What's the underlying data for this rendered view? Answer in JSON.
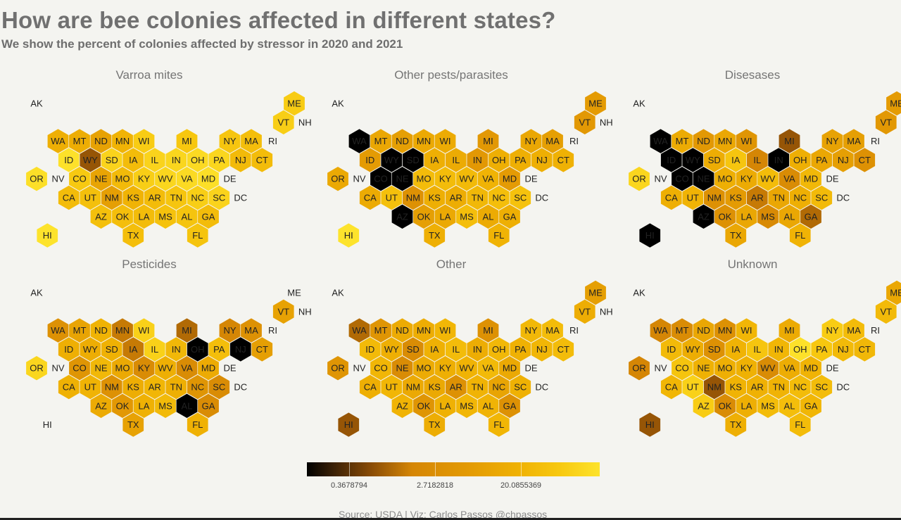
{
  "title": "How are bee colonies affected in different states?",
  "subtitle": "We show the percent of colonies affected by stressor in 2020 and 2021",
  "caption": "Source: USDA |  Viz: Carlos Passos @chpassos",
  "colors": {
    "background": "#f4f4f0",
    "scale_low": "#000000",
    "scale_mid": "#e39a04",
    "scale_high": "#fde32c",
    "missing": "#ffffff"
  },
  "legend": {
    "ticks": [
      {
        "label": "0.3678794",
        "value": 0.3678794
      },
      {
        "label": "2.7182818",
        "value": 2.7182818
      },
      {
        "label": "20.0855369",
        "value": 20.0855369
      }
    ]
  },
  "chart_data": {
    "type": "heatmap",
    "note_scale": "log color scale, dark = low percent, yellow = high percent",
    "grid": {
      "AK": [
        0,
        0
      ],
      "ME": [
        12,
        0
      ],
      "VT": [
        11,
        1
      ],
      "NH": [
        12,
        1
      ],
      "WA": [
        1,
        2
      ],
      "MT": [
        2,
        2
      ],
      "ND": [
        3,
        2
      ],
      "MN": [
        4,
        2
      ],
      "WI": [
        5,
        2
      ],
      "MI": [
        7,
        2
      ],
      "NY": [
        9,
        2
      ],
      "MA": [
        10,
        2
      ],
      "RI": [
        11,
        2
      ],
      "ID": [
        1,
        3
      ],
      "WY": [
        2,
        3
      ],
      "SD": [
        3,
        3
      ],
      "IA": [
        4,
        3
      ],
      "IL": [
        5,
        3
      ],
      "IN": [
        6,
        3
      ],
      "OH": [
        7,
        3
      ],
      "PA": [
        8,
        3
      ],
      "NJ": [
        9,
        3
      ],
      "CT": [
        10,
        3
      ],
      "OR": [
        0,
        4
      ],
      "NV": [
        1,
        4
      ],
      "CO": [
        2,
        4
      ],
      "NE": [
        3,
        4
      ],
      "MO": [
        4,
        4
      ],
      "KY": [
        5,
        4
      ],
      "WV": [
        6,
        4
      ],
      "VA": [
        7,
        4
      ],
      "MD": [
        8,
        4
      ],
      "DE": [
        9,
        4
      ],
      "CA": [
        1,
        5
      ],
      "UT": [
        2,
        5
      ],
      "NM": [
        3,
        5
      ],
      "KS": [
        4,
        5
      ],
      "AR": [
        5,
        5
      ],
      "TN": [
        6,
        5
      ],
      "NC": [
        7,
        5
      ],
      "SC": [
        8,
        5
      ],
      "DC": [
        9,
        5
      ],
      "AZ": [
        3,
        6
      ],
      "OK": [
        4,
        6
      ],
      "LA": [
        5,
        6
      ],
      "MS": [
        6,
        6
      ],
      "AL": [
        7,
        6
      ],
      "GA": [
        8,
        6
      ],
      "HI": [
        0,
        7
      ],
      "TX": [
        4,
        7
      ],
      "FL": [
        7,
        7
      ]
    },
    "panels": [
      {
        "name": "Varroa mites",
        "values": {
          "AK": null,
          "ME": 30,
          "VT": 31,
          "NH": null,
          "WA": 16,
          "MT": 15,
          "ND": 10,
          "MN": 18,
          "WI": 30,
          "MI": 28,
          "NY": 27,
          "MA": 23,
          "RI": null,
          "ID": 39,
          "WY": 1.5,
          "SD": 33,
          "IA": 22,
          "IL": 33,
          "IN": 34,
          "OH": 36,
          "PA": 34,
          "NJ": 21,
          "CT": 22,
          "OR": 38,
          "NV": null,
          "CO": 29,
          "NE": 11,
          "MO": 21,
          "KY": 31,
          "WV": 34,
          "VA": 36,
          "MD": 38,
          "DE": null,
          "CA": 22,
          "UT": 24,
          "NM": 9,
          "KS": 18,
          "AR": 22,
          "TN": 27,
          "NC": 31,
          "SC": 33,
          "DC": null,
          "AZ": 24,
          "OK": 23,
          "LA": 22,
          "MS": 25,
          "AL": 26,
          "GA": 22,
          "HI": 40,
          "TX": 23,
          "FL": 26
        }
      },
      {
        "name": "Other pests/parasites",
        "values": {
          "AK": null,
          "ME": 8,
          "VT": 7,
          "NH": null,
          "WA": 0,
          "MT": 12,
          "ND": 9,
          "MN": 13,
          "WI": 14,
          "MI": 7,
          "NY": 12,
          "MA": 9,
          "RI": null,
          "ID": 8,
          "WY": 0,
          "SD": 0,
          "IA": 16,
          "IL": 14,
          "IN": 7,
          "OH": 16,
          "PA": 16,
          "NJ": 16,
          "CT": 17,
          "OR": 13,
          "NV": null,
          "CO": 0,
          "NE": 0,
          "MO": 22,
          "KY": 22,
          "WV": 21,
          "VA": 18,
          "MD": 8,
          "DE": null,
          "CA": 14,
          "UT": 24,
          "NM": 5,
          "KS": 16,
          "AR": 15,
          "TN": 20,
          "NC": 23,
          "SC": 25,
          "DC": null,
          "AZ": 0,
          "OK": 9,
          "LA": 13,
          "MS": 23,
          "AL": 14,
          "GA": 16,
          "HI": 40,
          "TX": 16,
          "FL": 18
        }
      },
      {
        "name": "Disesases",
        "values": {
          "AK": null,
          "ME": 8,
          "VT": 7,
          "NH": null,
          "WA": 0,
          "MT": 14,
          "ND": 7,
          "MN": 12,
          "WI": 6,
          "MI": 1.5,
          "NY": 10,
          "MA": 9,
          "RI": null,
          "ID": 0,
          "WY": 0,
          "SD": 15,
          "IA": 27,
          "IL": 3,
          "IN": 0,
          "OH": 16,
          "PA": 12,
          "NJ": 9,
          "CT": 5,
          "OR": 34,
          "NV": null,
          "CO": 0,
          "NE": 0,
          "MO": 16,
          "KY": 14,
          "WV": 22,
          "VA": 4,
          "MD": 20,
          "DE": null,
          "CA": 16,
          "UT": 18,
          "NM": 5,
          "KS": 8,
          "AR": 2.5,
          "TN": 12,
          "NC": 16,
          "SC": 21,
          "DC": null,
          "AZ": 0,
          "OK": 5,
          "LA": 12,
          "MS": 3.5,
          "AL": 12,
          "GA": 2,
          "HI": 0,
          "TX": 12,
          "FL": 18
        }
      },
      {
        "name": "Pesticides",
        "values": {
          "AK": null,
          "ME": null,
          "VT": 10,
          "NH": null,
          "WA": 5,
          "MT": 11,
          "ND": 18,
          "MN": 2.5,
          "WI": 32,
          "MI": 2,
          "NY": 3,
          "MA": 5,
          "RI": null,
          "ID": 16,
          "WY": 15,
          "SD": 17,
          "IA": 2.5,
          "IL": 32,
          "IN": 20,
          "OH": 0,
          "PA": 23,
          "NJ": 0,
          "CT": 9,
          "OR": 34,
          "NV": null,
          "CO": 6,
          "NE": 20,
          "MO": 13,
          "KY": 4,
          "WV": 16,
          "VA": 4,
          "MD": 14,
          "DE": null,
          "CA": 17,
          "UT": 18,
          "NM": 5,
          "KS": 15,
          "AR": 19,
          "TN": 16,
          "NC": 6,
          "SC": 4,
          "DC": null,
          "AZ": 14,
          "OK": 7,
          "LA": 17,
          "MS": 21,
          "AL": 0,
          "GA": 4,
          "HI": null,
          "TX": 10,
          "FL": 17
        }
      },
      {
        "name": "Other",
        "values": {
          "AK": null,
          "ME": 9,
          "VT": 15,
          "NH": null,
          "WA": 2,
          "MT": 6,
          "ND": 14,
          "MN": 15,
          "WI": 19,
          "MI": 5,
          "NY": 20,
          "MA": 22,
          "RI": null,
          "ID": 21,
          "WY": 16,
          "SD": 4,
          "IA": 17,
          "IL": 22,
          "IN": 15,
          "OH": 20,
          "PA": 17,
          "NJ": 19,
          "CT": 22,
          "OR": 6,
          "NV": null,
          "CO": 19,
          "NE": 4,
          "MO": 14,
          "KY": 16,
          "WV": 18,
          "VA": 21,
          "MD": 13,
          "DE": null,
          "CA": 16,
          "UT": 19,
          "NM": 13,
          "KS": 13,
          "AR": 5,
          "TN": 18,
          "NC": 11,
          "SC": 17,
          "DC": null,
          "AZ": 18,
          "OK": 6,
          "LA": 17,
          "MS": 19,
          "AL": 18,
          "GA": 5,
          "HI": 1.5,
          "TX": 15,
          "FL": 19
        }
      },
      {
        "name": "Unknown",
        "values": {
          "AK": null,
          "ME": 12,
          "VT": 21,
          "NH": null,
          "WA": 3,
          "MT": 4,
          "ND": 12,
          "MN": 5,
          "WI": 19,
          "MI": 14,
          "NY": 30,
          "MA": 22,
          "RI": null,
          "ID": 21,
          "WY": 15,
          "SD": 5,
          "IA": 18,
          "IL": 27,
          "IN": 19,
          "OH": 39,
          "PA": 28,
          "NJ": 21,
          "CT": 20,
          "OR": 3,
          "NV": null,
          "CO": 26,
          "NE": 17,
          "MO": 16,
          "KY": 17,
          "WV": 4,
          "VA": 15,
          "MD": 18,
          "DE": null,
          "CA": 19,
          "UT": 32,
          "NM": 1.5,
          "KS": 18,
          "AR": 17,
          "TN": 18,
          "NC": 22,
          "SC": 22,
          "DC": null,
          "AZ": 30,
          "OK": 4,
          "LA": 16,
          "MS": 22,
          "AL": 23,
          "GA": 19,
          "HI": 1.5,
          "TX": 16,
          "FL": 22
        }
      }
    ]
  }
}
